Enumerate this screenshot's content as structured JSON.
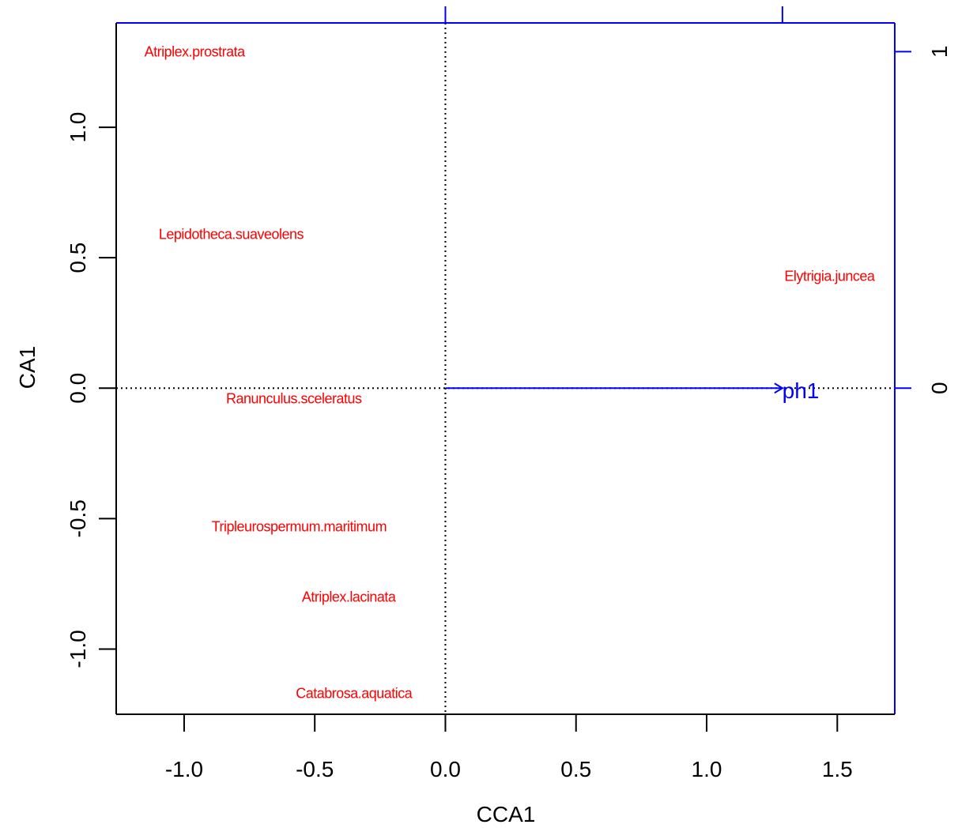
{
  "chart_data": {
    "type": "scatter",
    "title": "",
    "xlabel": "CCA1",
    "ylabel": "CA1",
    "xlim": [
      -1.26,
      1.72
    ],
    "ylim": [
      -1.25,
      1.4
    ],
    "x_ticks": [
      -1.0,
      -0.5,
      0.0,
      0.5,
      1.0,
      1.5
    ],
    "x_tick_labels": [
      "-1.0",
      "-0.5",
      "0.0",
      "0.5",
      "1.0",
      "1.5"
    ],
    "y_ticks": [
      -1.0,
      -0.5,
      0.0,
      0.5,
      1.0
    ],
    "y_tick_labels": [
      "-1.0",
      "-0.5",
      "0.0",
      "0.5",
      "1.0"
    ],
    "reference_lines": {
      "x": 0,
      "y": 0,
      "style": "dotted"
    },
    "species": [
      {
        "label": "Atriplex.prostrata",
        "x": -0.96,
        "y": 1.29
      },
      {
        "label": "Lepidotheca.suaveolens",
        "x": -0.82,
        "y": 0.59
      },
      {
        "label": "Elytrigia.juncea",
        "x": 1.47,
        "y": 0.43
      },
      {
        "label": "Ranunculus.sceleratus",
        "x": -0.58,
        "y": -0.04
      },
      {
        "label": "Tripleurospermum.maritimum",
        "x": -0.56,
        "y": -0.53
      },
      {
        "label": "Atriplex.lacinata",
        "x": -0.37,
        "y": -0.8
      },
      {
        "label": "Catabrosa.aquatica",
        "x": -0.35,
        "y": -1.17
      }
    ],
    "species_color": "#ff0000",
    "biplot_arrows": [
      {
        "label": "ph1",
        "x_end": 1.29,
        "y_end": 0.0,
        "label_x": 1.36,
        "label_y": 0.0
      }
    ],
    "arrow_color": "#0000ff",
    "secondary_axes": {
      "color": "#0000ff",
      "right": {
        "ticks": [
          0,
          1
        ],
        "tick_labels": [
          "0",
          "1"
        ],
        "tick_values_in_primary": [
          0.0,
          1.29
        ]
      },
      "top": {
        "ticks": [
          0,
          1
        ],
        "tick_values_in_primary": [
          0.0,
          1.29
        ]
      }
    }
  }
}
